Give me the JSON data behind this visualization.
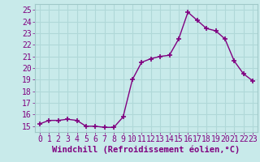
{
  "x": [
    0,
    1,
    2,
    3,
    4,
    5,
    6,
    7,
    8,
    9,
    10,
    11,
    12,
    13,
    14,
    15,
    16,
    17,
    18,
    19,
    20,
    21,
    22,
    23
  ],
  "y": [
    15.2,
    15.5,
    15.5,
    15.6,
    15.5,
    15.0,
    15.0,
    14.9,
    14.9,
    15.8,
    19.0,
    20.5,
    20.8,
    21.0,
    21.1,
    22.5,
    24.8,
    24.1,
    23.4,
    23.2,
    22.5,
    20.6,
    19.5,
    18.9
  ],
  "line_color": "#800080",
  "marker": "+",
  "marker_size": 4,
  "linewidth": 1.0,
  "xlabel": "Windchill (Refroidissement éolien,°C)",
  "ylim": [
    14.5,
    25.5
  ],
  "yticks": [
    15,
    16,
    17,
    18,
    19,
    20,
    21,
    22,
    23,
    24,
    25
  ],
  "xticks": [
    0,
    1,
    2,
    3,
    4,
    5,
    6,
    7,
    8,
    9,
    10,
    11,
    12,
    13,
    14,
    15,
    16,
    17,
    18,
    19,
    20,
    21,
    22,
    23
  ],
  "xlim": [
    -0.5,
    23.5
  ],
  "background_color": "#c8eaea",
  "grid_color": "#b0d8d8",
  "xlabel_color": "#800080",
  "tick_color": "#800080",
  "xlabel_fontsize": 7.5,
  "tick_fontsize": 7
}
